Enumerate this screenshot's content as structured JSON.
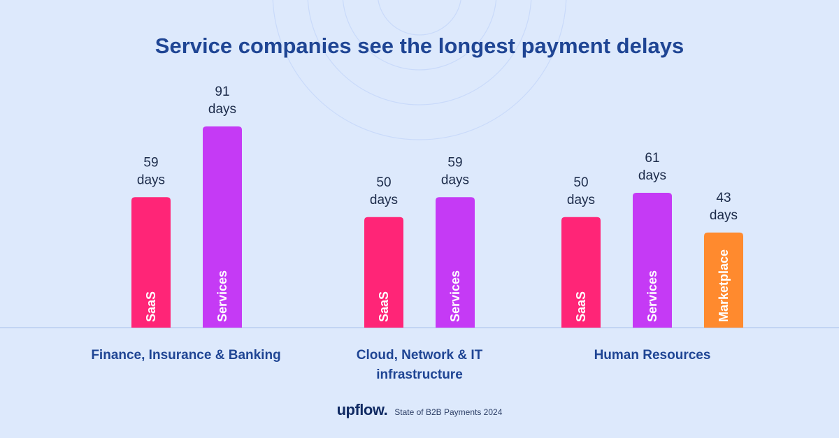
{
  "chart_data": {
    "type": "bar",
    "title": "Service companies see the longest payment delays",
    "unit": "days",
    "ylim": [
      0,
      91
    ],
    "groups": [
      {
        "category": "Finance, Insurance & Banking",
        "bars": [
          {
            "series": "SaaS",
            "value": 59
          },
          {
            "series": "Services",
            "value": 91
          }
        ]
      },
      {
        "category": "Cloud, Network & IT infrastructure",
        "bars": [
          {
            "series": "SaaS",
            "value": 50
          },
          {
            "series": "Services",
            "value": 59
          }
        ]
      },
      {
        "category": "Human Resources",
        "bars": [
          {
            "series": "SaaS",
            "value": 50
          },
          {
            "series": "Services",
            "value": 61
          },
          {
            "series": "Marketplace",
            "value": 43
          }
        ]
      }
    ],
    "colors": {
      "SaaS": "#ff2577",
      "Services": "#c53af5",
      "Marketplace": "#ff8a2e"
    }
  },
  "footer": {
    "brand": "upflow",
    "source": "State of B2B Payments 2024"
  },
  "colors": {
    "background": "#dde9fc",
    "title": "#1f4594",
    "category_label": "#1f4594",
    "value_label": "#1c2b4a",
    "baseline": "#b9cdf0"
  }
}
